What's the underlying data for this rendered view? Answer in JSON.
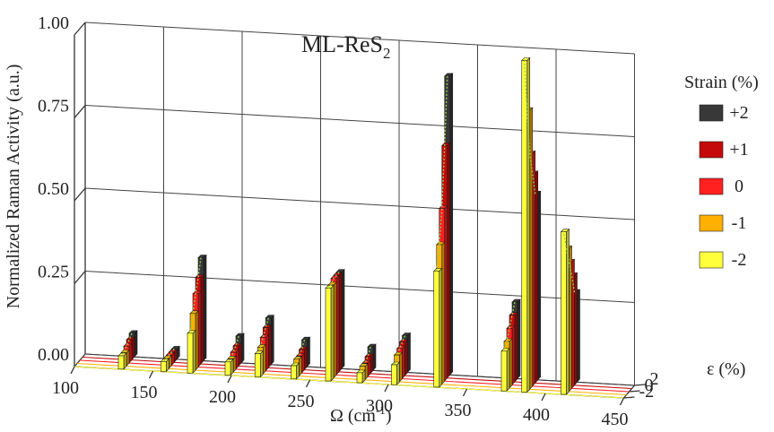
{
  "chart_data": {
    "type": "bar3d",
    "title": "ML-ReS",
    "title_subscript": "2",
    "xlabel": "Ω (cm",
    "xlabel_superscript": "-1",
    "xlabel_suffix": ")",
    "ylabel": "Normalized Raman Activity (a.u.)",
    "zlabel": "ε (%)",
    "xlim": [
      100,
      450
    ],
    "ylim": [
      0,
      1.0
    ],
    "x_ticks": [
      "100",
      "150",
      "200",
      "250",
      "300",
      "350",
      "400",
      "450"
    ],
    "y_ticks": [
      "0.00",
      "0.25",
      "0.50",
      "0.75",
      "1.00"
    ],
    "z_ticks": [
      "2",
      "0",
      "-2"
    ],
    "legend_title": "Strain (%)",
    "series": [
      {
        "name": "+2",
        "strain": 2,
        "color": "#383838",
        "x": [
          128,
          155,
          172,
          196,
          215,
          238,
          260,
          280,
          302,
          329,
          372,
          385,
          410
        ],
        "values": [
          0.07,
          0.03,
          0.31,
          0.08,
          0.14,
          0.08,
          0.29,
          0.07,
          0.11,
          0.9,
          0.23,
          0.56,
          0.27
        ]
      },
      {
        "name": "+1",
        "strain": 1,
        "color": "#c40a0a",
        "x": [
          128,
          155,
          172,
          196,
          215,
          238,
          260,
          280,
          302,
          329,
          372,
          385,
          410
        ],
        "values": [
          0.06,
          0.03,
          0.26,
          0.06,
          0.12,
          0.06,
          0.29,
          0.05,
          0.1,
          0.7,
          0.2,
          0.63,
          0.33
        ]
      },
      {
        "name": "0",
        "strain": 0,
        "color": "#ff2020",
        "x": [
          128,
          155,
          172,
          196,
          215,
          238,
          260,
          280,
          302,
          329,
          372,
          385,
          410
        ],
        "values": [
          0.05,
          0.03,
          0.22,
          0.05,
          0.1,
          0.05,
          0.29,
          0.04,
          0.09,
          0.52,
          0.17,
          0.7,
          0.38
        ]
      },
      {
        "name": "-1",
        "strain": -1,
        "color": "#ffb000",
        "x": [
          128,
          155,
          172,
          196,
          215,
          238,
          260,
          280,
          302,
          329,
          372,
          385,
          410
        ],
        "values": [
          0.04,
          0.03,
          0.17,
          0.04,
          0.08,
          0.05,
          0.28,
          0.04,
          0.08,
          0.42,
          0.14,
          0.84,
          0.43
        ]
      },
      {
        "name": "-2",
        "strain": -2,
        "color": "#ffff3c",
        "x": [
          128,
          155,
          172,
          196,
          215,
          238,
          260,
          280,
          302,
          329,
          372,
          385,
          410
        ],
        "values": [
          0.04,
          0.03,
          0.12,
          0.04,
          0.07,
          0.04,
          0.28,
          0.03,
          0.06,
          0.35,
          0.12,
          1.0,
          0.49
        ]
      }
    ]
  }
}
